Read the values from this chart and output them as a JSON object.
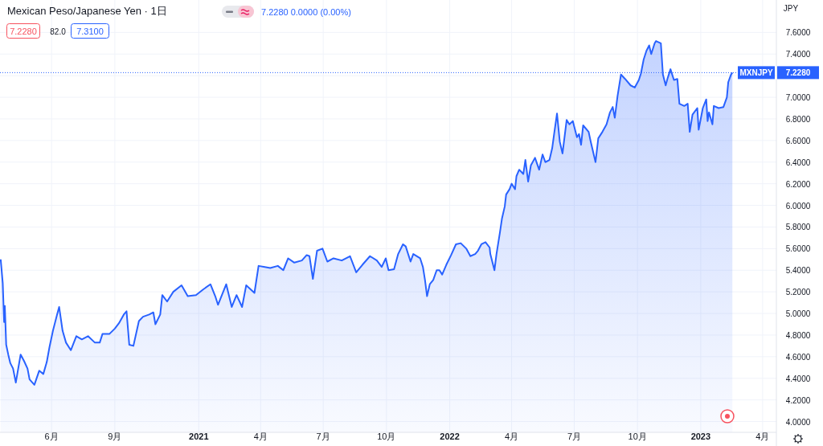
{
  "chart_data": {
    "type": "area",
    "title": "Mexican Peso/Japanese Yen · 1日",
    "ylabel": "JPY",
    "annotations": [
      "7.2280 0.0000 (0.00%)",
      "7.2280",
      "82.0",
      "7.3100",
      "MXNJPY"
    ],
    "x": [
      "2020-03-19",
      "2020-03-22",
      "2020-03-24",
      "2020-03-25",
      "2020-03-27",
      "2020-03-30",
      "2020-04-02",
      "2020-04-06",
      "2020-04-10",
      "2020-04-17",
      "2020-04-22",
      "2020-04-27",
      "2020-04-30",
      "2020-05-07",
      "2020-05-14",
      "2020-05-20",
      "2020-05-25",
      "2020-05-29",
      "2020-06-03",
      "2020-06-09",
      "2020-06-12",
      "2020-06-17",
      "2020-06-22",
      "2020-06-29",
      "2020-07-07",
      "2020-07-15",
      "2020-07-24",
      "2020-08-03",
      "2020-08-10",
      "2020-08-14",
      "2020-08-24",
      "2020-09-01",
      "2020-09-07",
      "2020-09-14",
      "2020-09-18",
      "2020-09-22",
      "2020-09-28",
      "2020-10-06",
      "2020-10-12",
      "2020-10-21",
      "2020-10-27",
      "2020-10-30",
      "2020-11-06",
      "2020-11-09",
      "2020-11-16",
      "2020-11-25",
      "2020-12-07",
      "2020-12-16",
      "2020-12-28",
      "2021-01-07",
      "2021-01-18",
      "2021-01-25",
      "2021-01-29",
      "2021-02-10",
      "2021-02-18",
      "2021-02-25",
      "2021-03-05",
      "2021-03-11",
      "2021-03-23",
      "2021-03-29",
      "2021-04-07",
      "2021-04-15",
      "2021-04-26",
      "2021-05-04",
      "2021-05-11",
      "2021-05-20",
      "2021-05-31",
      "2021-06-07",
      "2021-06-11",
      "2021-06-16",
      "2021-06-22",
      "2021-06-30",
      "2021-07-07",
      "2021-07-16",
      "2021-07-28",
      "2021-08-09",
      "2021-08-18",
      "2021-08-27",
      "2021-09-07",
      "2021-09-17",
      "2021-09-24",
      "2021-09-30",
      "2021-10-04",
      "2021-10-12",
      "2021-10-18",
      "2021-10-25",
      "2021-10-29",
      "2021-11-05",
      "2021-11-09",
      "2021-11-19",
      "2021-11-23",
      "2021-11-26",
      "2021-11-29",
      "2021-12-03",
      "2021-12-08",
      "2021-12-13",
      "2021-12-17",
      "2021-12-21",
      "2021-12-27",
      "2022-01-03",
      "2022-01-10",
      "2022-01-17",
      "2022-01-25",
      "2022-01-31",
      "2022-02-07",
      "2022-02-11",
      "2022-02-16",
      "2022-02-22",
      "2022-02-28",
      "2022-03-01",
      "2022-03-07",
      "2022-03-10",
      "2022-03-15",
      "2022-03-18",
      "2022-03-22",
      "2022-03-24",
      "2022-03-29",
      "2022-04-01",
      "2022-04-06",
      "2022-04-08",
      "2022-04-12",
      "2022-04-18",
      "2022-04-21",
      "2022-04-25",
      "2022-04-29",
      "2022-05-05",
      "2022-05-11",
      "2022-05-16",
      "2022-05-20",
      "2022-05-26",
      "2022-05-30",
      "2022-06-02",
      "2022-06-06",
      "2022-06-10",
      "2022-06-14",
      "2022-06-20",
      "2022-06-24",
      "2022-06-29",
      "2022-07-05",
      "2022-07-08",
      "2022-07-11",
      "2022-07-14",
      "2022-07-22",
      "2022-07-25",
      "2022-08-01",
      "2022-08-05",
      "2022-08-11",
      "2022-08-17",
      "2022-08-22",
      "2022-08-26",
      "2022-08-29",
      "2022-09-02",
      "2022-09-07",
      "2022-09-13",
      "2022-09-21",
      "2022-09-27",
      "2022-10-03",
      "2022-10-06",
      "2022-10-10",
      "2022-10-14",
      "2022-10-18",
      "2022-10-21",
      "2022-10-26",
      "2022-10-28",
      "2022-11-04",
      "2022-11-07",
      "2022-11-11",
      "2022-11-14",
      "2022-11-18",
      "2022-11-23",
      "2022-11-28",
      "2022-12-01",
      "2022-12-08",
      "2022-12-13",
      "2022-12-16",
      "2022-12-20",
      "2022-12-27",
      "2022-12-29",
      "2023-01-04",
      "2023-01-09",
      "2023-01-11",
      "2023-01-13",
      "2023-01-18",
      "2023-01-20",
      "2023-01-27",
      "2023-02-03",
      "2023-02-08",
      "2023-02-10",
      "2023-02-14",
      "2023-02-16"
    ],
    "series": [
      {
        "color": "#2962ff",
        "values": [
          5.5,
          5.28,
          4.92,
          5.07,
          4.71,
          4.62,
          4.54,
          4.49,
          4.36,
          4.62,
          4.56,
          4.49,
          4.39,
          4.34,
          4.47,
          4.44,
          4.55,
          4.69,
          4.84,
          4.99,
          5.06,
          4.84,
          4.73,
          4.66,
          4.79,
          4.76,
          4.79,
          4.73,
          4.73,
          4.81,
          4.81,
          4.86,
          4.91,
          4.99,
          5.02,
          4.71,
          4.7,
          4.93,
          4.97,
          4.99,
          5.01,
          4.9,
          4.99,
          5.17,
          5.11,
          5.2,
          5.26,
          5.16,
          5.17,
          5.22,
          5.27,
          5.16,
          5.08,
          5.27,
          5.06,
          5.17,
          5.06,
          5.26,
          5.19,
          5.44,
          5.43,
          5.42,
          5.44,
          5.4,
          5.51,
          5.47,
          5.49,
          5.54,
          5.53,
          5.32,
          5.58,
          5.6,
          5.48,
          5.51,
          5.49,
          5.53,
          5.38,
          5.45,
          5.53,
          5.49,
          5.43,
          5.51,
          5.4,
          5.41,
          5.55,
          5.64,
          5.62,
          5.48,
          5.55,
          5.51,
          5.43,
          5.31,
          5.16,
          5.27,
          5.31,
          5.4,
          5.4,
          5.36,
          5.45,
          5.54,
          5.64,
          5.65,
          5.6,
          5.53,
          5.55,
          5.58,
          5.64,
          5.66,
          5.61,
          5.55,
          5.4,
          5.55,
          5.75,
          5.88,
          5.99,
          6.1,
          6.15,
          6.2,
          6.15,
          6.27,
          6.33,
          6.29,
          6.42,
          6.22,
          6.37,
          6.44,
          6.33,
          6.47,
          6.4,
          6.42,
          6.53,
          6.67,
          6.85,
          6.59,
          6.48,
          6.79,
          6.75,
          6.78,
          6.63,
          6.66,
          6.56,
          6.74,
          6.68,
          6.59,
          6.4,
          6.62,
          6.68,
          6.75,
          6.86,
          6.91,
          6.81,
          7.01,
          7.21,
          7.17,
          7.11,
          7.09,
          7.16,
          7.22,
          7.35,
          7.43,
          7.48,
          7.4,
          7.5,
          7.52,
          7.5,
          7.21,
          7.11,
          7.18,
          7.26,
          7.16,
          7.17,
          6.94,
          6.92,
          6.94,
          6.68,
          6.84,
          6.9,
          6.7,
          6.9,
          6.98,
          6.78,
          6.86,
          6.75,
          6.92,
          6.9,
          6.91,
          7.0,
          7.14,
          7.21,
          7.228
        ]
      }
    ],
    "xlim": [
      "2020-03-18",
      "2023-04-21"
    ],
    "xticks": [
      {
        "value": "2020-06",
        "label": "6月"
      },
      {
        "value": "2020-09",
        "label": "9月"
      },
      "2021",
      {
        "value": "2021-04",
        "label": "4月"
      },
      {
        "value": "2021-07",
        "label": "7月"
      },
      {
        "value": "2021-10",
        "label": "10月"
      },
      "2022",
      {
        "value": "2022-04",
        "label": "4月"
      },
      {
        "value": "2022-07",
        "label": "7月"
      },
      {
        "value": "2022-10",
        "label": "10月"
      },
      "2023",
      {
        "value": "2023-04",
        "label": "4月"
      }
    ],
    "ylim": [
      3.9,
      7.9
    ],
    "yticks": [
      {
        "value": 4,
        "label": "4.0000"
      },
      {
        "value": 4.2,
        "label": "4.2000"
      },
      {
        "value": 4.4,
        "label": "4.4000"
      },
      {
        "value": 4.6,
        "label": "4.6000"
      },
      {
        "value": 4.8,
        "label": "4.8000"
      },
      {
        "value": 5,
        "label": "5.0000"
      },
      {
        "value": 5.2,
        "label": "5.2000"
      },
      {
        "value": 5.4,
        "label": "5.4000"
      },
      {
        "value": 5.6,
        "label": "5.6000"
      },
      {
        "value": 5.8,
        "label": "5.8000"
      },
      {
        "value": 6,
        "label": "6.0000"
      },
      {
        "value": 6.2,
        "label": "6.2000"
      },
      {
        "value": 6.4,
        "label": "6.4000"
      },
      {
        "value": 6.6,
        "label": "6.6000"
      },
      {
        "value": 6.8,
        "label": "6.8000"
      },
      {
        "value": 7,
        "label": "7.0000"
      },
      {
        "value": 7.2,
        "label": null
      },
      {
        "value": 7.4,
        "label": "7.4000"
      },
      {
        "value": 7.6,
        "label": "7.6000"
      }
    ],
    "ref_lines": [
      {
        "axis": "y",
        "value": 7.228,
        "label": "7.2280",
        "color": "#2962ff",
        "line_style": "dotted"
      }
    ],
    "grid": true
  }
}
